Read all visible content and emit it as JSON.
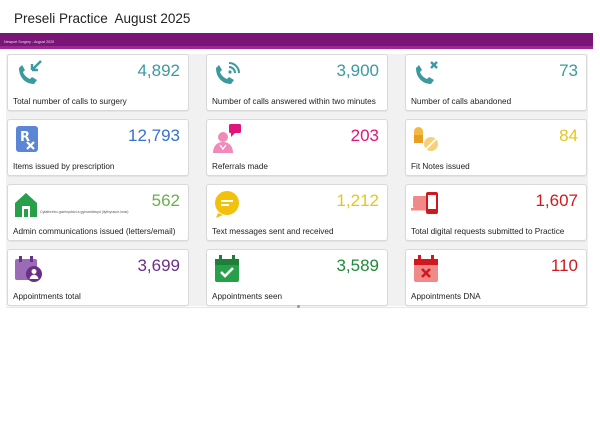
{
  "page": {
    "title": "Preseli Practice  August 2025",
    "banner": "Newport Surgery - August 2025"
  },
  "colors": {
    "teal": "#3a9aa0",
    "blue": "#3a6fcf",
    "magenta": "#e0147a",
    "yellow": "#e8c51c",
    "green": "#28a04a",
    "red": "#d0191f",
    "purple": "#6a2f86",
    "banner": "#7a1476"
  },
  "tiles": [
    {
      "label": "Total number of calls to surgery",
      "value": "4,892",
      "icon": "phone-incoming-icon"
    },
    {
      "label": "Number of calls answered within two minutes",
      "value": "3,900",
      "icon": "phone-wifi-icon"
    },
    {
      "label": "Number of calls abandoned",
      "value": "73",
      "icon": "phone-missed-icon"
    },
    {
      "label": "Items issued by prescription",
      "value": "12,793",
      "icon": "prescription-icon"
    },
    {
      "label": "Referrals made",
      "value": "203",
      "icon": "referral-person-icon"
    },
    {
      "label": "Fit Notes issued",
      "value": "84",
      "icon": "pills-icon"
    },
    {
      "label": "Admin communications issued (letters/email)",
      "value": "562",
      "icon": "admin-home-icon",
      "note": "Cyfathrebu gweinyddol a gyhoeddwyd (llythyrau/e-bost)"
    },
    {
      "label": "Text messages sent and received",
      "value": "1,212",
      "icon": "chat-bubble-icon"
    },
    {
      "label": "Total digital requests submitted to Practice",
      "value": "1,607",
      "icon": "digital-devices-icon"
    },
    {
      "label": "Appointments total",
      "value": "3,699",
      "icon": "calendar-person-icon"
    },
    {
      "label": "Appointments seen",
      "value": "3,589",
      "icon": "calendar-check-icon"
    },
    {
      "label": "Appointments DNA",
      "value": "110",
      "icon": "calendar-cross-icon"
    }
  ]
}
